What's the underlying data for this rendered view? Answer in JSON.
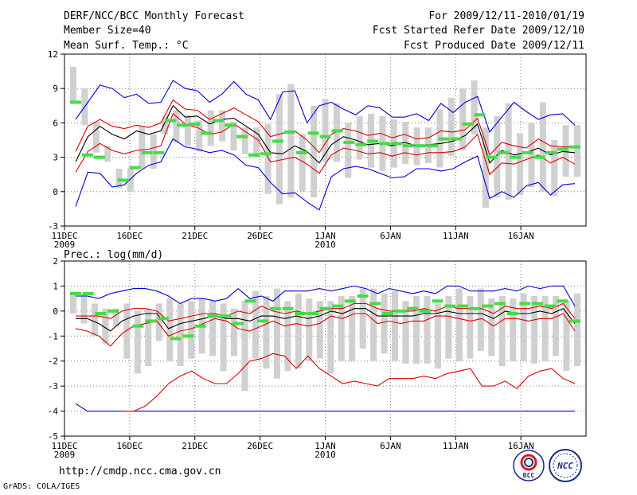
{
  "header": {
    "title": "DERF/NCC/BCC Monthly Forecast",
    "member_size": "Member Size=40",
    "variable": "Mean Surf. Temp.: °C",
    "period": "For 2009/12/11-2010/01/19",
    "started": "Fcst Started Refer Date 2009/12/10",
    "produced": "Fcst Produced Date 2009/12/11"
  },
  "footer": {
    "url": "http://cmdp.ncc.cma.gov.cn",
    "grads": "GrADS: COLA/IGES",
    "logo_bcc": "BCC",
    "logo_ncc": "NCC"
  },
  "colors": {
    "max_min": "#0000dd",
    "spread": "#dd0000",
    "mean": "#000000",
    "box": "#d0d0d0",
    "obs": "#44dd44"
  },
  "chart_data": [
    {
      "type": "line",
      "title": "Mean Surf. Temp.: °C",
      "ylim": [
        -3,
        12
      ],
      "yticks": [
        "12",
        "9",
        "6",
        "3",
        "0",
        "-3"
      ],
      "xticks": [
        "11DEC",
        "16DEC",
        "21DEC",
        "26DEC",
        "1JAN",
        "6JAN",
        "11JAN",
        "16JAN"
      ],
      "xtick_years": [
        "2009",
        "2010"
      ],
      "days": 40,
      "series": [
        {
          "name": "max",
          "values": [
            -1.3,
            1.7,
            1.6,
            0.4,
            0.6,
            1.6,
            2.3,
            2.6,
            4.6,
            3.9,
            3.7,
            3.4,
            3.6,
            3.2,
            2.3,
            2.1,
            0.8,
            -0.2,
            -0.1,
            -0.9,
            -1.6,
            1.3,
            2.0,
            2.2,
            2.0,
            1.6,
            1.2,
            1.3,
            2.0,
            2.0,
            1.8,
            2.0,
            2.6,
            3.1,
            -0.6,
            0.0,
            -0.5,
            0.5,
            0.8,
            -0.3,
            0.6,
            0.7
          ]
        },
        {
          "name": "min",
          "values": [
            6.3,
            7.8,
            9.3,
            9.0,
            8.2,
            8.5,
            7.7,
            7.8,
            9.7,
            9.0,
            8.8,
            7.8,
            8.5,
            9.6,
            8.5,
            8.0,
            6.3,
            8.7,
            8.8,
            6.0,
            7.5,
            7.8,
            7.2,
            6.7,
            7.5,
            7.3,
            6.5,
            6.5,
            6.8,
            6.2,
            7.7,
            6.9,
            7.8,
            8.3,
            5.2,
            6.5,
            7.8,
            7.0,
            6.3,
            6.7,
            6.8,
            5.8
          ]
        },
        {
          "name": "upper",
          "values": [
            3.5,
            5.7,
            6.3,
            5.7,
            5.5,
            5.8,
            5.6,
            6.0,
            8.0,
            7.2,
            7.1,
            6.3,
            6.8,
            7.3,
            6.7,
            6.1,
            4.8,
            5.1,
            5.3,
            4.5,
            3.4,
            5.0,
            5.5,
            5.3,
            4.9,
            5.1,
            4.7,
            5.0,
            4.6,
            4.7,
            5.3,
            5.2,
            5.4,
            6.4,
            3.2,
            4.3,
            4.0,
            3.8,
            4.6,
            4.0,
            3.9,
            3.9
          ]
        },
        {
          "name": "lower",
          "values": [
            1.7,
            3.5,
            4.2,
            3.6,
            3.3,
            3.6,
            3.7,
            4.0,
            6.8,
            5.9,
            5.6,
            5.0,
            5.2,
            5.9,
            5.2,
            4.5,
            2.6,
            2.8,
            3.0,
            2.4,
            1.6,
            3.2,
            3.8,
            3.6,
            3.3,
            3.4,
            3.1,
            3.4,
            3.2,
            3.4,
            3.4,
            3.5,
            3.9,
            5.0,
            1.5,
            2.5,
            2.4,
            2.8,
            3.2,
            2.5,
            3.0,
            2.4
          ]
        },
        {
          "name": "mean",
          "values": [
            2.6,
            4.8,
            5.7,
            5.0,
            4.6,
            5.3,
            5.0,
            5.3,
            7.5,
            6.5,
            6.6,
            5.9,
            6.3,
            6.4,
            5.7,
            5.0,
            3.4,
            3.3,
            4.0,
            3.5,
            2.5,
            4.1,
            4.8,
            4.5,
            4.1,
            4.2,
            4.0,
            4.3,
            4.0,
            4.1,
            4.2,
            4.4,
            4.9,
            5.9,
            2.5,
            3.6,
            3.2,
            3.4,
            3.8,
            3.2,
            3.5,
            3.4
          ]
        },
        {
          "name": "box_top",
          "values": [
            10.9,
            9.0,
            6.1,
            4.0,
            2.0,
            2.1,
            5.7,
            5.0,
            6.5,
            7.1,
            6.7,
            6.2,
            7.1,
            7.1,
            6.1,
            5.6,
            5.6,
            5.9,
            8.5,
            9.4,
            5.0,
            7.5,
            8.1,
            7.7,
            6.0,
            6.6,
            6.8,
            6.6,
            6.3,
            6.1,
            5.6,
            5.6,
            7.2,
            8.2,
            9.0,
            9.7,
            5.6,
            6.6,
            7.7,
            5.1,
            6.0,
            7.8,
            4.5,
            5.8,
            5.8
          ]
        },
        {
          "name": "box_bottom",
          "values": [
            7.8,
            5.8,
            3.4,
            2.6,
            0.3,
            0.0,
            2.0,
            2.0,
            5.0,
            4.3,
            4.0,
            3.5,
            4.0,
            4.4,
            3.6,
            3.3,
            3.0,
            -0.2,
            -1.1,
            -0.5,
            0.0,
            -0.5,
            2.6,
            2.6,
            1.2,
            2.8,
            2.1,
            1.8,
            2.1,
            2.4,
            2.3,
            2.5,
            2.1,
            3.1,
            3.6,
            5.0,
            -1.4,
            -0.5,
            -0.7,
            -0.3,
            0.4,
            0.0,
            -0.4,
            1.3,
            1.3
          ]
        },
        {
          "name": "observed",
          "values": [
            7.8,
            3.2,
            3.0,
            null,
            1.0,
            2.1,
            3.4,
            3.4,
            6.2,
            5.8,
            5.9,
            5.1,
            6.2,
            5.8,
            4.8,
            3.2,
            3.3,
            4.4,
            5.2,
            3.4,
            5.1,
            4.8,
            5.3,
            4.3,
            4.1,
            4.4,
            4.2,
            4.2,
            4.0,
            4.0,
            4.0,
            4.6,
            4.6,
            5.9,
            6.7,
            3.0,
            3.4,
            3.0,
            3.4,
            3.0,
            3.4,
            3.7,
            3.9
          ]
        }
      ]
    },
    {
      "type": "line",
      "title": "Prec.: log(mm/d)",
      "ylim": [
        -5,
        2
      ],
      "yticks": [
        "2",
        "1",
        "0",
        "-1",
        "-2",
        "-3",
        "-4",
        "-5"
      ],
      "xticks": [
        "11DEC",
        "16DEC",
        "21DEC",
        "26DEC",
        "1JAN",
        "6JAN",
        "11JAN",
        "16JAN"
      ],
      "xtick_years": [
        "2009",
        "2010"
      ],
      "days": 40,
      "series": [
        {
          "name": "max",
          "values": [
            0.6,
            0.6,
            0.5,
            0.7,
            0.8,
            0.9,
            0.9,
            0.8,
            0.6,
            0.3,
            0.5,
            0.5,
            0.4,
            0.5,
            0.9,
            0.5,
            0.6,
            0.4,
            0.8,
            0.8,
            0.8,
            0.9,
            0.8,
            0.9,
            1.0,
            0.9,
            0.7,
            0.9,
            0.8,
            0.7,
            0.8,
            0.7,
            1.0,
            1.0,
            0.8,
            0.8,
            0.8,
            0.9,
            0.8,
            1.0,
            0.9,
            1.0,
            1.0,
            0.2
          ]
        },
        {
          "name": "min",
          "values": [
            -3.7,
            -4.0,
            -4.0,
            -4.0,
            -4.0,
            -4.0,
            -4.0,
            -4.0,
            -4.0,
            -4.0,
            -4.0,
            -4.0,
            -4.0,
            -4.0,
            -4.0,
            -4.0,
            -4.0,
            -4.0,
            -4.0,
            -4.0,
            -4.0,
            -4.0,
            -4.0,
            -4.0,
            -4.0,
            -4.0,
            -4.0,
            -4.0,
            -4.0,
            -4.0,
            -4.0,
            -4.0,
            -4.0,
            -4.0,
            -4.0,
            -4.0,
            -4.0,
            -4.0,
            -4.0,
            -4.0,
            -4.0,
            -4.0,
            -4.0,
            -4.0
          ]
        },
        {
          "name": "upper",
          "values": [
            -0.2,
            -0.2,
            -0.2,
            -0.3,
            0.0,
            0.1,
            0.1,
            0.0,
            -0.4,
            -0.3,
            -0.2,
            -0.1,
            -0.1,
            -0.2,
            0.0,
            -0.1,
            0.2,
            0.0,
            -0.1,
            0.0,
            -0.1,
            0.0,
            0.1,
            0.1,
            0.3,
            0.3,
            0.1,
            0.0,
            0.0,
            0.0,
            0.1,
            0.0,
            0.2,
            0.1,
            0.1,
            0.1,
            -0.1,
            0.2,
            0.1,
            0.1,
            0.2,
            0.1,
            0.3,
            -0.3
          ]
        },
        {
          "name": "lower",
          "values": [
            -0.7,
            -0.8,
            -1.0,
            -1.4,
            -0.9,
            -0.6,
            -0.5,
            -0.4,
            -1.0,
            -0.8,
            -0.7,
            -0.5,
            -0.3,
            -0.4,
            -0.7,
            -0.8,
            -0.6,
            -0.4,
            -0.6,
            -0.5,
            -0.6,
            -0.5,
            -0.2,
            -0.3,
            -0.1,
            -0.1,
            -0.5,
            -0.4,
            -0.5,
            -0.4,
            -0.4,
            -0.2,
            -0.2,
            -0.3,
            -0.4,
            -0.3,
            -0.6,
            -0.3,
            -0.3,
            -0.4,
            -0.3,
            -0.3,
            -0.1,
            -0.8
          ]
        },
        {
          "name": "mean",
          "values": [
            -0.3,
            -0.3,
            -0.5,
            -0.8,
            -0.4,
            -0.2,
            -0.1,
            -0.1,
            -0.7,
            -0.5,
            -0.4,
            -0.3,
            -0.2,
            -0.3,
            -0.3,
            -0.4,
            -0.2,
            -0.2,
            -0.3,
            -0.2,
            -0.3,
            -0.2,
            0.0,
            -0.1,
            0.1,
            0.1,
            -0.2,
            -0.2,
            -0.2,
            -0.2,
            -0.1,
            -0.1,
            0.0,
            -0.1,
            -0.1,
            -0.1,
            -0.3,
            0.0,
            -0.1,
            -0.1,
            0.0,
            -0.1,
            0.1,
            -0.5
          ]
        },
        {
          "name": "lower_extreme",
          "values": [
            null,
            null,
            null,
            null,
            -4.0,
            -4.0,
            -3.8,
            -3.4,
            -2.9,
            -2.6,
            -2.4,
            -2.7,
            -2.9,
            -2.9,
            -2.5,
            -2.0,
            -1.9,
            -1.7,
            -1.8,
            -2.3,
            -1.8,
            -2.3,
            -2.6,
            -2.9,
            -2.8,
            -2.9,
            -3.0,
            -2.7,
            -2.7,
            -2.7,
            -2.6,
            -2.7,
            -2.5,
            -2.4,
            -2.3,
            -3.0,
            -3.0,
            -2.8,
            -3.1,
            -2.6,
            -2.4,
            -2.3,
            -2.7,
            -2.9
          ]
        },
        {
          "name": "box_top",
          "values": [
            0.7,
            0.7,
            0.3,
            0.1,
            0.1,
            0.3,
            0.0,
            0.1,
            0.3,
            0.5,
            0.3,
            0.4,
            0.5,
            0.4,
            0.3,
            0.1,
            0.4,
            0.8,
            0.6,
            0.9,
            0.4,
            0.7,
            0.5,
            0.4,
            0.4,
            0.6,
            0.6,
            0.9,
            0.9,
            0.7,
            0.8,
            0.4,
            0.6,
            0.6,
            0.3,
            0.6,
            0.9,
            0.6,
            0.9,
            0.5,
            0.6,
            0.5,
            0.7,
            0.6,
            0.6,
            0.6,
            0.4,
            0.7
          ]
        },
        {
          "name": "box_bottom",
          "values": [
            -0.1,
            -0.5,
            -1.0,
            -1.3,
            -0.6,
            -1.9,
            -2.5,
            -2.2,
            -1.2,
            -2.0,
            -2.2,
            -1.9,
            -1.7,
            -1.8,
            -2.4,
            -1.8,
            -3.2,
            -1.9,
            -2.3,
            -2.7,
            -2.4,
            -2.3,
            -2.0,
            -1.9,
            -2.5,
            -2.0,
            -2.0,
            -1.5,
            -2.0,
            -1.7,
            -2.0,
            -2.1,
            -2.1,
            -2.1,
            -2.3,
            -1.9,
            -2.0,
            -1.9,
            -1.6,
            -1.8,
            -2.2,
            -2.0,
            -2.0,
            -2.1,
            -2.0,
            -1.8,
            -2.4,
            -2.2
          ]
        },
        {
          "name": "observed",
          "values": [
            0.7,
            0.7,
            -0.1,
            0.0,
            null,
            -0.6,
            -0.4,
            -0.3,
            -1.1,
            -1.0,
            -0.6,
            -0.2,
            -0.2,
            -0.5,
            0.4,
            -0.4,
            0.1,
            0.1,
            -0.1,
            -0.1,
            0.1,
            0.2,
            0.4,
            0.6,
            0.3,
            -0.1,
            0.0,
            0.1,
            0.0,
            0.4,
            0.2,
            0.2,
            0.1,
            0.2,
            0.3,
            -0.1,
            0.3,
            0.3,
            0.2,
            0.4,
            -0.4
          ]
        }
      ]
    }
  ]
}
